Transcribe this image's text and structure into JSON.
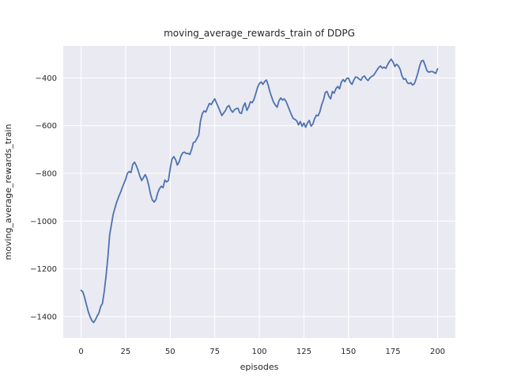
{
  "figure": {
    "title": "moving_average_rewards_train of DDPG",
    "xlabel": "episodes",
    "ylabel": "moving_average_rewards_train"
  },
  "colors": {
    "figure_bg": "#ffffff",
    "axes_bg": "#eaeaf2",
    "grid": "#ffffff",
    "line": "#4c72b0",
    "text": "#262626"
  },
  "chart_data": {
    "type": "line",
    "title": "moving_average_rewards_train of DDPG",
    "xlabel": "episodes",
    "ylabel": "moving_average_rewards_train",
    "xlim": [
      -10,
      210
    ],
    "ylim": [
      -1490,
      -266
    ],
    "grid": true,
    "legend_position": "none",
    "x_ticks": [
      0,
      25,
      50,
      75,
      100,
      125,
      150,
      175,
      200
    ],
    "x_tick_labels": [
      "0",
      "25",
      "50",
      "75",
      "100",
      "125",
      "150",
      "175",
      "200"
    ],
    "y_ticks": [
      -400,
      -600,
      -800,
      -1000,
      -1200,
      -1400
    ],
    "y_tick_labels": [
      "−400",
      "−600",
      "−800",
      "−1000",
      "−1200",
      "−1400"
    ],
    "series": [
      {
        "name": "moving_average_rewards_train",
        "x_start": 0,
        "x_step": 1,
        "values": [
          -1290,
          -1297,
          -1320,
          -1350,
          -1378,
          -1400,
          -1416,
          -1425,
          -1414,
          -1398,
          -1385,
          -1358,
          -1345,
          -1295,
          -1230,
          -1155,
          -1060,
          -1015,
          -972,
          -945,
          -920,
          -900,
          -882,
          -862,
          -843,
          -825,
          -800,
          -792,
          -797,
          -762,
          -753,
          -768,
          -788,
          -812,
          -830,
          -818,
          -805,
          -822,
          -852,
          -888,
          -912,
          -920,
          -910,
          -882,
          -864,
          -854,
          -860,
          -828,
          -836,
          -830,
          -780,
          -740,
          -730,
          -742,
          -765,
          -752,
          -728,
          -714,
          -711,
          -717,
          -716,
          -721,
          -700,
          -671,
          -668,
          -654,
          -640,
          -580,
          -550,
          -538,
          -543,
          -524,
          -507,
          -512,
          -499,
          -488,
          -505,
          -522,
          -540,
          -558,
          -547,
          -537,
          -521,
          -516,
          -534,
          -544,
          -534,
          -529,
          -527,
          -546,
          -549,
          -520,
          -505,
          -536,
          -522,
          -500,
          -504,
          -490,
          -466,
          -440,
          -424,
          -417,
          -427,
          -415,
          -409,
          -431,
          -460,
          -482,
          -502,
          -514,
          -523,
          -496,
          -484,
          -493,
          -488,
          -499,
          -517,
          -536,
          -554,
          -570,
          -574,
          -580,
          -597,
          -583,
          -603,
          -589,
          -607,
          -589,
          -578,
          -602,
          -594,
          -571,
          -556,
          -559,
          -541,
          -512,
          -492,
          -461,
          -457,
          -477,
          -488,
          -457,
          -464,
          -445,
          -436,
          -446,
          -418,
          -407,
          -416,
          -402,
          -401,
          -419,
          -427,
          -409,
          -396,
          -398,
          -405,
          -410,
          -396,
          -392,
          -404,
          -411,
          -400,
          -394,
          -390,
          -379,
          -367,
          -356,
          -350,
          -359,
          -355,
          -360,
          -344,
          -331,
          -322,
          -333,
          -352,
          -343,
          -350,
          -364,
          -391,
          -406,
          -403,
          -420,
          -424,
          -420,
          -430,
          -424,
          -403,
          -378,
          -348,
          -329,
          -327,
          -347,
          -369,
          -376,
          -374,
          -373,
          -377,
          -381,
          -362
        ]
      }
    ]
  }
}
